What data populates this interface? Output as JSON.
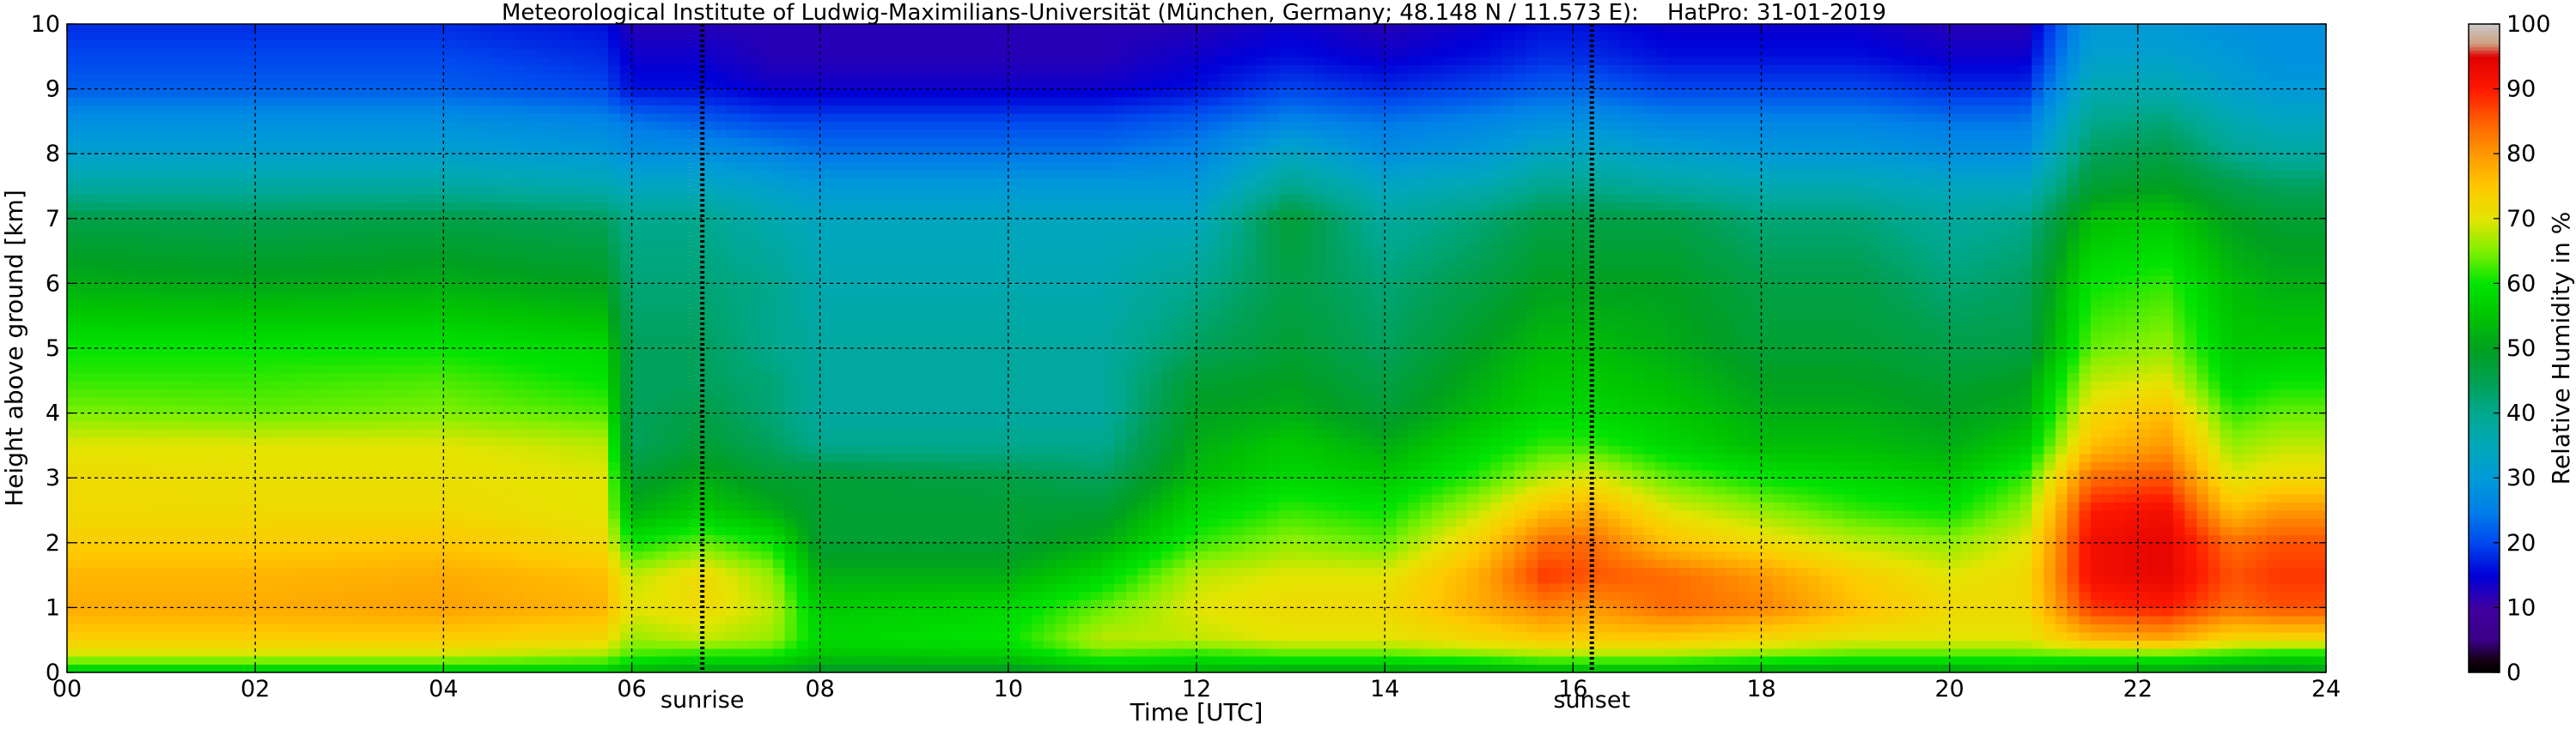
{
  "chart_data": {
    "type": "heatmap",
    "title": "Meteorological Institute of Ludwig-Maximilians-Universität (München, Germany; 48.148 N / 11.573 E):    HatPro: 31-01-2019",
    "xlabel": "Time [UTC]",
    "ylabel": "Height above ground [km]",
    "colorbar_label": "Relative Humidity in %",
    "xlim": [
      0,
      24
    ],
    "ylim": [
      0,
      10
    ],
    "clim": [
      0,
      100
    ],
    "x_ticks": [
      "00",
      "02",
      "04",
      "06",
      "08",
      "10",
      "12",
      "14",
      "16",
      "18",
      "20",
      "22",
      "24"
    ],
    "y_ticks": [
      "0",
      "1",
      "2",
      "3",
      "4",
      "5",
      "6",
      "7",
      "8",
      "9",
      "10"
    ],
    "colorbar_ticks": [
      "0",
      "10",
      "20",
      "30",
      "40",
      "50",
      "60",
      "70",
      "80",
      "90",
      "100"
    ],
    "grid": true,
    "annotations": [
      {
        "text": "sunrise",
        "x": 6.75
      },
      {
        "text": "sunset",
        "x": 16.2
      }
    ],
    "colormap": [
      {
        "v": 0,
        "c": "#000000"
      },
      {
        "v": 2,
        "c": "#150015"
      },
      {
        "v": 5,
        "c": "#3a0088"
      },
      {
        "v": 10,
        "c": "#4000a0"
      },
      {
        "v": 15,
        "c": "#0000d8"
      },
      {
        "v": 20,
        "c": "#0048ee"
      },
      {
        "v": 25,
        "c": "#0080e8"
      },
      {
        "v": 30,
        "c": "#009ad8"
      },
      {
        "v": 35,
        "c": "#00a8b8"
      },
      {
        "v": 40,
        "c": "#00a88e"
      },
      {
        "v": 45,
        "c": "#00a050"
      },
      {
        "v": 50,
        "c": "#00a020"
      },
      {
        "v": 55,
        "c": "#00c400"
      },
      {
        "v": 60,
        "c": "#00e400"
      },
      {
        "v": 65,
        "c": "#80f000"
      },
      {
        "v": 70,
        "c": "#e4e400"
      },
      {
        "v": 75,
        "c": "#ffc800"
      },
      {
        "v": 80,
        "c": "#ff9800"
      },
      {
        "v": 85,
        "c": "#ff6000"
      },
      {
        "v": 90,
        "c": "#ff1800"
      },
      {
        "v": 95,
        "c": "#e00000"
      },
      {
        "v": 97,
        "c": "#d0a080"
      },
      {
        "v": 100,
        "c": "#c8c8c8"
      }
    ],
    "height_levels_km": [
      0,
      0.25,
      0.5,
      1,
      1.5,
      2,
      2.5,
      3,
      3.5,
      4,
      4.5,
      5,
      6,
      7,
      7.5,
      8,
      8.5,
      9,
      9.5,
      10
    ],
    "times_utc": [
      0,
      2,
      4,
      5.7,
      6,
      6.75,
      7.5,
      8,
      10,
      11,
      12,
      13,
      14,
      15,
      15.7,
      16.2,
      17,
      18,
      19,
      20,
      20.8,
      21.5,
      22.3,
      23,
      23.5,
      24
    ],
    "relative_humidity_percent": [
      [
        55,
        68,
        74,
        78,
        77,
        74,
        72,
        72,
        70,
        65,
        62,
        60,
        52,
        46,
        38,
        32,
        28,
        22,
        20,
        18
      ],
      [
        55,
        68,
        74,
        78,
        77,
        74,
        72,
        71,
        70,
        64,
        62,
        60,
        51,
        45,
        38,
        32,
        28,
        22,
        20,
        18
      ],
      [
        55,
        68,
        74,
        79,
        78,
        75,
        72,
        71,
        70,
        65,
        63,
        60,
        52,
        46,
        38,
        32,
        28,
        22,
        20,
        18
      ],
      [
        55,
        66,
        72,
        77,
        76,
        72,
        70,
        70,
        68,
        63,
        60,
        58,
        50,
        44,
        36,
        30,
        26,
        20,
        18,
        16
      ],
      [
        52,
        62,
        66,
        70,
        68,
        60,
        52,
        48,
        44,
        44,
        44,
        44,
        42,
        40,
        34,
        28,
        24,
        16,
        14,
        12
      ],
      [
        50,
        60,
        68,
        72,
        72,
        64,
        56,
        52,
        48,
        46,
        44,
        44,
        42,
        40,
        34,
        28,
        22,
        16,
        14,
        12
      ],
      [
        50,
        60,
        66,
        68,
        66,
        60,
        52,
        48,
        44,
        42,
        42,
        40,
        40,
        36,
        32,
        26,
        20,
        14,
        12,
        12
      ],
      [
        48,
        55,
        58,
        56,
        52,
        48,
        48,
        48,
        40,
        38,
        38,
        38,
        36,
        34,
        30,
        24,
        20,
        14,
        12,
        12
      ],
      [
        48,
        56,
        60,
        58,
        52,
        48,
        48,
        46,
        40,
        38,
        38,
        38,
        36,
        34,
        30,
        24,
        20,
        14,
        12,
        12
      ],
      [
        52,
        62,
        68,
        64,
        58,
        52,
        48,
        44,
        40,
        38,
        38,
        38,
        36,
        34,
        30,
        24,
        20,
        14,
        12,
        12
      ],
      [
        52,
        60,
        68,
        70,
        68,
        62,
        58,
        54,
        52,
        50,
        48,
        44,
        40,
        34,
        30,
        26,
        22,
        16,
        14,
        12
      ],
      [
        50,
        62,
        70,
        72,
        70,
        66,
        62,
        58,
        56,
        52,
        50,
        48,
        46,
        48,
        40,
        34,
        26,
        20,
        16,
        14
      ],
      [
        50,
        62,
        70,
        72,
        70,
        64,
        60,
        56,
        52,
        48,
        46,
        44,
        42,
        38,
        34,
        28,
        24,
        18,
        14,
        12
      ],
      [
        50,
        64,
        72,
        78,
        78,
        74,
        68,
        62,
        58,
        54,
        52,
        50,
        46,
        42,
        36,
        30,
        26,
        20,
        16,
        14
      ],
      [
        52,
        66,
        74,
        82,
        88,
        84,
        76,
        68,
        62,
        58,
        56,
        54,
        50,
        46,
        40,
        34,
        28,
        22,
        18,
        16
      ],
      [
        52,
        66,
        74,
        80,
        86,
        84,
        78,
        70,
        62,
        58,
        56,
        54,
        50,
        46,
        40,
        34,
        28,
        22,
        18,
        16
      ],
      [
        52,
        66,
        74,
        84,
        84,
        76,
        70,
        64,
        58,
        56,
        54,
        52,
        50,
        46,
        38,
        32,
        26,
        20,
        16,
        14
      ],
      [
        50,
        64,
        72,
        82,
        80,
        72,
        66,
        60,
        54,
        52,
        50,
        48,
        46,
        42,
        36,
        30,
        26,
        20,
        16,
        14
      ],
      [
        50,
        62,
        70,
        76,
        74,
        68,
        62,
        58,
        54,
        52,
        50,
        48,
        46,
        42,
        36,
        30,
        26,
        20,
        16,
        14
      ],
      [
        50,
        62,
        70,
        72,
        70,
        66,
        60,
        56,
        52,
        50,
        48,
        46,
        42,
        38,
        34,
        28,
        24,
        18,
        14,
        12
      ],
      [
        52,
        62,
        70,
        72,
        72,
        70,
        66,
        62,
        56,
        52,
        50,
        46,
        44,
        40,
        34,
        28,
        24,
        18,
        14,
        12
      ],
      [
        50,
        62,
        76,
        88,
        92,
        92,
        90,
        84,
        76,
        72,
        68,
        64,
        60,
        54,
        48,
        44,
        40,
        36,
        32,
        30
      ],
      [
        50,
        62,
        78,
        90,
        94,
        94,
        92,
        86,
        80,
        76,
        70,
        66,
        62,
        56,
        50,
        46,
        42,
        36,
        32,
        30
      ],
      [
        48,
        60,
        72,
        84,
        86,
        84,
        76,
        70,
        66,
        62,
        58,
        56,
        54,
        50,
        46,
        40,
        36,
        32,
        30,
        28
      ],
      [
        48,
        58,
        72,
        86,
        88,
        86,
        80,
        72,
        68,
        64,
        60,
        56,
        52,
        48,
        44,
        38,
        34,
        30,
        28,
        28
      ],
      [
        50,
        58,
        72,
        86,
        88,
        86,
        80,
        72,
        68,
        64,
        60,
        56,
        52,
        48,
        44,
        38,
        34,
        30,
        28,
        28
      ]
    ]
  }
}
